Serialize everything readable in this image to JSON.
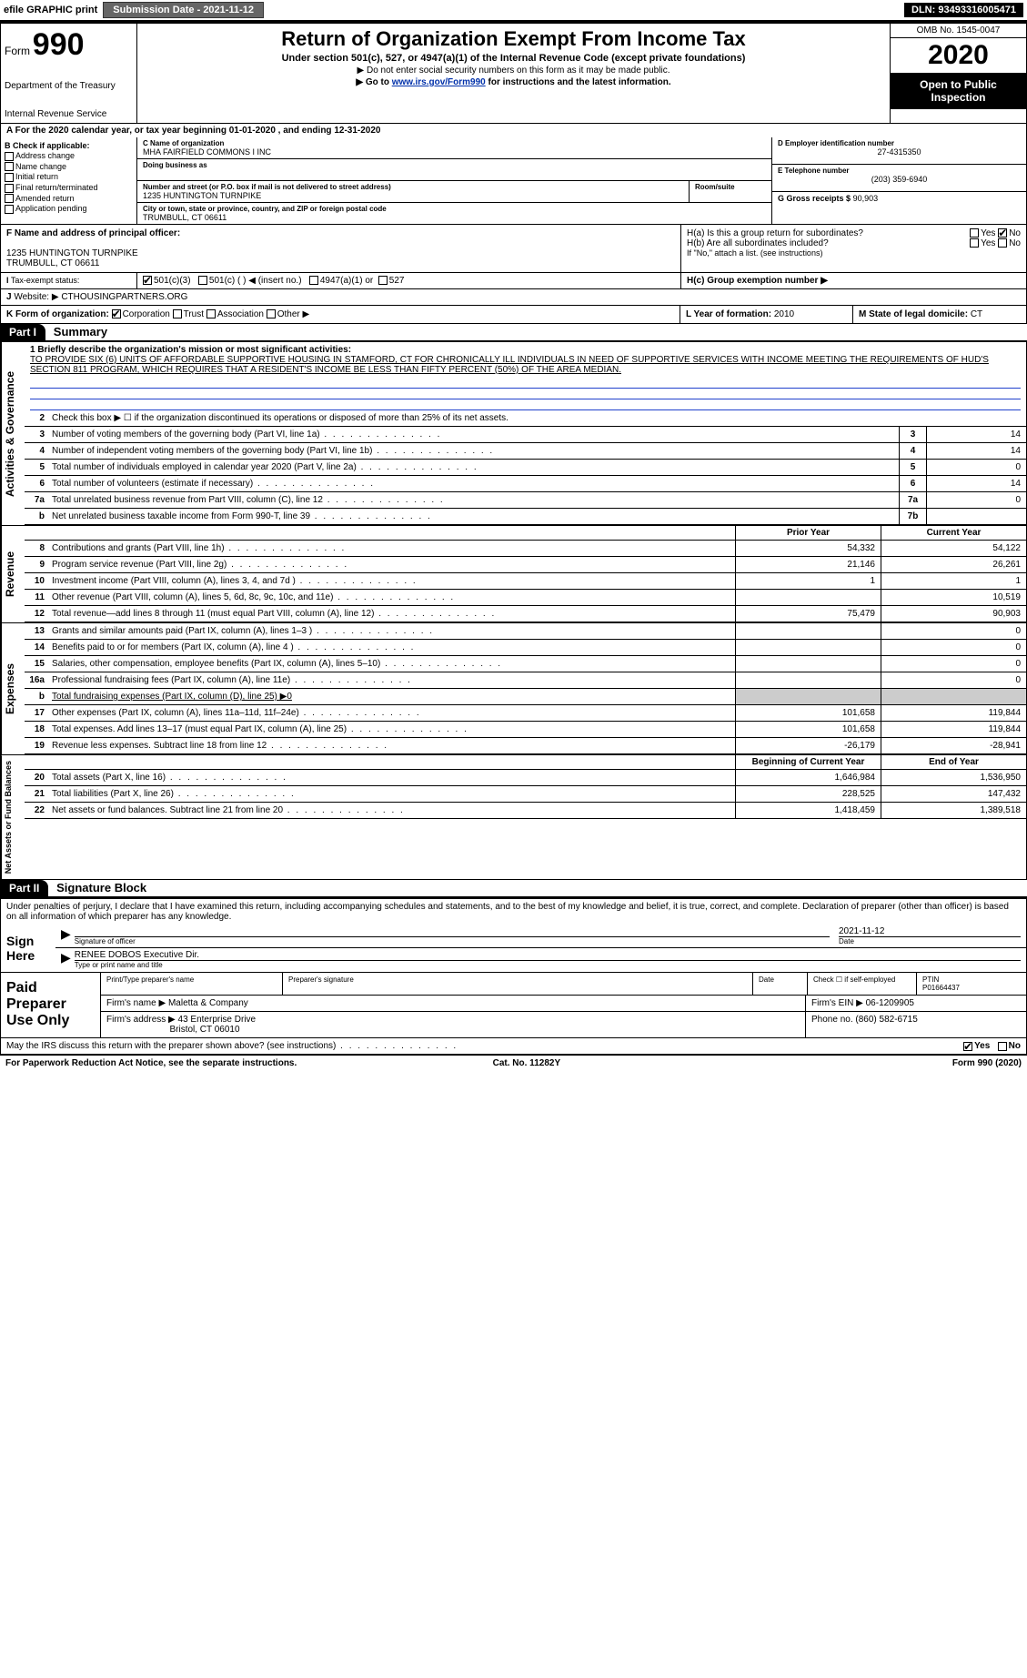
{
  "topbar": {
    "efile": "efile GRAPHIC print",
    "submission_label": "Submission Date - 2021-11-12",
    "dln_label": "DLN: 93493316005471"
  },
  "header": {
    "form_word": "Form",
    "form_num": "990",
    "dept": "Department of the Treasury",
    "irs": "Internal Revenue Service",
    "title": "Return of Organization Exempt From Income Tax",
    "sub": "Under section 501(c), 527, or 4947(a)(1) of the Internal Revenue Code (except private foundations)",
    "sub2": "▶ Do not enter social security numbers on this form as it may be made public.",
    "sub3_pre": "▶ Go to ",
    "sub3_link": "www.irs.gov/Form990",
    "sub3_post": " for instructions and the latest information.",
    "omb": "OMB No. 1545-0047",
    "year": "2020",
    "open": "Open to Public Inspection"
  },
  "period": "A For the 2020 calendar year, or tax year beginning 01-01-2020    , and ending 12-31-2020",
  "boxB": {
    "hd": "B Check if applicable:",
    "items": [
      "Address change",
      "Name change",
      "Initial return",
      "Final return/terminated",
      "Amended return",
      "Application pending"
    ]
  },
  "boxC": {
    "label": "C Name of organization",
    "name": "MHA FAIRFIELD COMMONS I INC",
    "dba_label": "Doing business as",
    "street_label": "Number and street (or P.O. box if mail is not delivered to street address)",
    "room_label": "Room/suite",
    "street": "1235 HUNTINGTON TURNPIKE",
    "city_label": "City or town, state or province, country, and ZIP or foreign postal code",
    "city": "TRUMBULL, CT  06611"
  },
  "boxD": {
    "label": "D Employer identification number",
    "value": "27-4315350"
  },
  "boxE": {
    "label": "E Telephone number",
    "value": "(203) 359-6940"
  },
  "boxG": {
    "label": "G Gross receipts $",
    "value": "90,903"
  },
  "boxF": {
    "label": "F Name and address of principal officer:",
    "addr1": "1235 HUNTINGTON TURNPIKE",
    "addr2": "TRUMBULL, CT  06611"
  },
  "boxH": {
    "a": "H(a)  Is this a group return for subordinates?",
    "b": "H(b)  Are all subordinates included?",
    "bnote": "If \"No,\" attach a list. (see instructions)",
    "c": "H(c)  Group exemption number ▶",
    "yes": "Yes",
    "no": "No"
  },
  "boxI": {
    "label": "Tax-exempt status:",
    "o1": "501(c)(3)",
    "o2": "501(c) (  ) ◀ (insert no.)",
    "o3": "4947(a)(1) or",
    "o4": "527"
  },
  "boxJ": {
    "label": "Website: ▶",
    "value": "CTHOUSINGPARTNERS.ORG"
  },
  "boxK": {
    "label": "K Form of organization:",
    "o1": "Corporation",
    "o2": "Trust",
    "o3": "Association",
    "o4": "Other ▶"
  },
  "boxL": {
    "label": "L Year of formation:",
    "value": "2010"
  },
  "boxM": {
    "label": "M State of legal domicile:",
    "value": "CT"
  },
  "part1": {
    "tag": "Part I",
    "title": "Summary"
  },
  "mission": {
    "lead": "1  Briefly describe the organization's mission or most significant activities:",
    "text": "TO PROVIDE SIX (6) UNITS OF AFFORDABLE SUPPORTIVE HOUSING IN STAMFORD, CT FOR CHRONICALLY ILL INDIVIDUALS IN NEED OF SUPPORTIVE SERVICES WITH INCOME MEETING THE REQUIREMENTS OF HUD'S SECTION 811 PROGRAM, WHICH REQUIRES THAT A RESIDENT'S INCOME BE LESS THAN FIFTY PERCENT (50%) OF THE AREA MEDIAN."
  },
  "sidebars": {
    "gov": "Activities & Governance",
    "rev": "Revenue",
    "exp": "Expenses",
    "net": "Net Assets or Fund Balances"
  },
  "lines_gov": [
    {
      "n": "2",
      "t": "Check this box ▶ ☐ if the organization discontinued its operations or disposed of more than 25% of its net assets."
    },
    {
      "n": "3",
      "t": "Number of voting members of the governing body (Part VI, line 1a)",
      "box": "3",
      "v": "14"
    },
    {
      "n": "4",
      "t": "Number of independent voting members of the governing body (Part VI, line 1b)",
      "box": "4",
      "v": "14"
    },
    {
      "n": "5",
      "t": "Total number of individuals employed in calendar year 2020 (Part V, line 2a)",
      "box": "5",
      "v": "0"
    },
    {
      "n": "6",
      "t": "Total number of volunteers (estimate if necessary)",
      "box": "6",
      "v": "14"
    },
    {
      "n": "7a",
      "t": "Total unrelated business revenue from Part VIII, column (C), line 12",
      "box": "7a",
      "v": "0"
    },
    {
      "n": "b",
      "t": "Net unrelated business taxable income from Form 990-T, line 39",
      "box": "7b",
      "v": ""
    }
  ],
  "fin_hdr": {
    "prior": "Prior Year",
    "current": "Current Year"
  },
  "lines_rev": [
    {
      "n": "8",
      "t": "Contributions and grants (Part VIII, line 1h)",
      "p": "54,332",
      "c": "54,122"
    },
    {
      "n": "9",
      "t": "Program service revenue (Part VIII, line 2g)",
      "p": "21,146",
      "c": "26,261"
    },
    {
      "n": "10",
      "t": "Investment income (Part VIII, column (A), lines 3, 4, and 7d )",
      "p": "1",
      "c": "1"
    },
    {
      "n": "11",
      "t": "Other revenue (Part VIII, column (A), lines 5, 6d, 8c, 9c, 10c, and 11e)",
      "p": "",
      "c": "10,519"
    },
    {
      "n": "12",
      "t": "Total revenue—add lines 8 through 11 (must equal Part VIII, column (A), line 12)",
      "p": "75,479",
      "c": "90,903"
    }
  ],
  "lines_exp": [
    {
      "n": "13",
      "t": "Grants and similar amounts paid (Part IX, column (A), lines 1–3 )",
      "p": "",
      "c": "0"
    },
    {
      "n": "14",
      "t": "Benefits paid to or for members (Part IX, column (A), line 4 )",
      "p": "",
      "c": "0"
    },
    {
      "n": "15",
      "t": "Salaries, other compensation, employee benefits (Part IX, column (A), lines 5–10)",
      "p": "",
      "c": "0"
    },
    {
      "n": "16a",
      "t": "Professional fundraising fees (Part IX, column (A), line 11e)",
      "p": "",
      "c": "0"
    },
    {
      "n": "b",
      "t": "Total fundraising expenses (Part IX, column (D), line 25) ▶0",
      "p": "",
      "c": "",
      "noval": true
    },
    {
      "n": "17",
      "t": "Other expenses (Part IX, column (A), lines 11a–11d, 11f–24e)",
      "p": "101,658",
      "c": "119,844"
    },
    {
      "n": "18",
      "t": "Total expenses. Add lines 13–17 (must equal Part IX, column (A), line 25)",
      "p": "101,658",
      "c": "119,844"
    },
    {
      "n": "19",
      "t": "Revenue less expenses. Subtract line 18 from line 12",
      "p": "-26,179",
      "c": "-28,941"
    }
  ],
  "net_hdr": {
    "beg": "Beginning of Current Year",
    "end": "End of Year"
  },
  "lines_net": [
    {
      "n": "20",
      "t": "Total assets (Part X, line 16)",
      "p": "1,646,984",
      "c": "1,536,950"
    },
    {
      "n": "21",
      "t": "Total liabilities (Part X, line 26)",
      "p": "228,525",
      "c": "147,432"
    },
    {
      "n": "22",
      "t": "Net assets or fund balances. Subtract line 21 from line 20",
      "p": "1,418,459",
      "c": "1,389,518"
    }
  ],
  "part2": {
    "tag": "Part II",
    "title": "Signature Block"
  },
  "sig": {
    "decl": "Under penalties of perjury, I declare that I have examined this return, including accompanying schedules and statements, and to the best of my knowledge and belief, it is true, correct, and complete. Declaration of preparer (other than officer) is based on all information of which preparer has any knowledge.",
    "sign_here": "Sign Here",
    "sig_officer": "Signature of officer",
    "date": "Date",
    "date_val": "2021-11-12",
    "name": "RENEE DOBOS  Executive Dir.",
    "name_lbl": "Type or print name and title"
  },
  "paid": {
    "label": "Paid Preparer Use Only",
    "h1": "Print/Type preparer's name",
    "h2": "Preparer's signature",
    "h3": "Date",
    "h4": "Check ☐ if self-employed",
    "h5": "PTIN",
    "ptin": "P01664437",
    "firm_lbl": "Firm's name   ▶",
    "firm": "Maletta & Company",
    "ein_lbl": "Firm's EIN ▶",
    "ein": "06-1209905",
    "addr_lbl": "Firm's address ▶",
    "addr1": "43 Enterprise Drive",
    "addr2": "Bristol, CT  06010",
    "phone_lbl": "Phone no.",
    "phone": "(860) 582-6715"
  },
  "discuss": {
    "q": "May the IRS discuss this return with the preparer shown above? (see instructions)",
    "yes": "Yes",
    "no": "No"
  },
  "footer": {
    "left": "For Paperwork Reduction Act Notice, see the separate instructions.",
    "mid": "Cat. No. 11282Y",
    "right": "Form 990 (2020)"
  }
}
